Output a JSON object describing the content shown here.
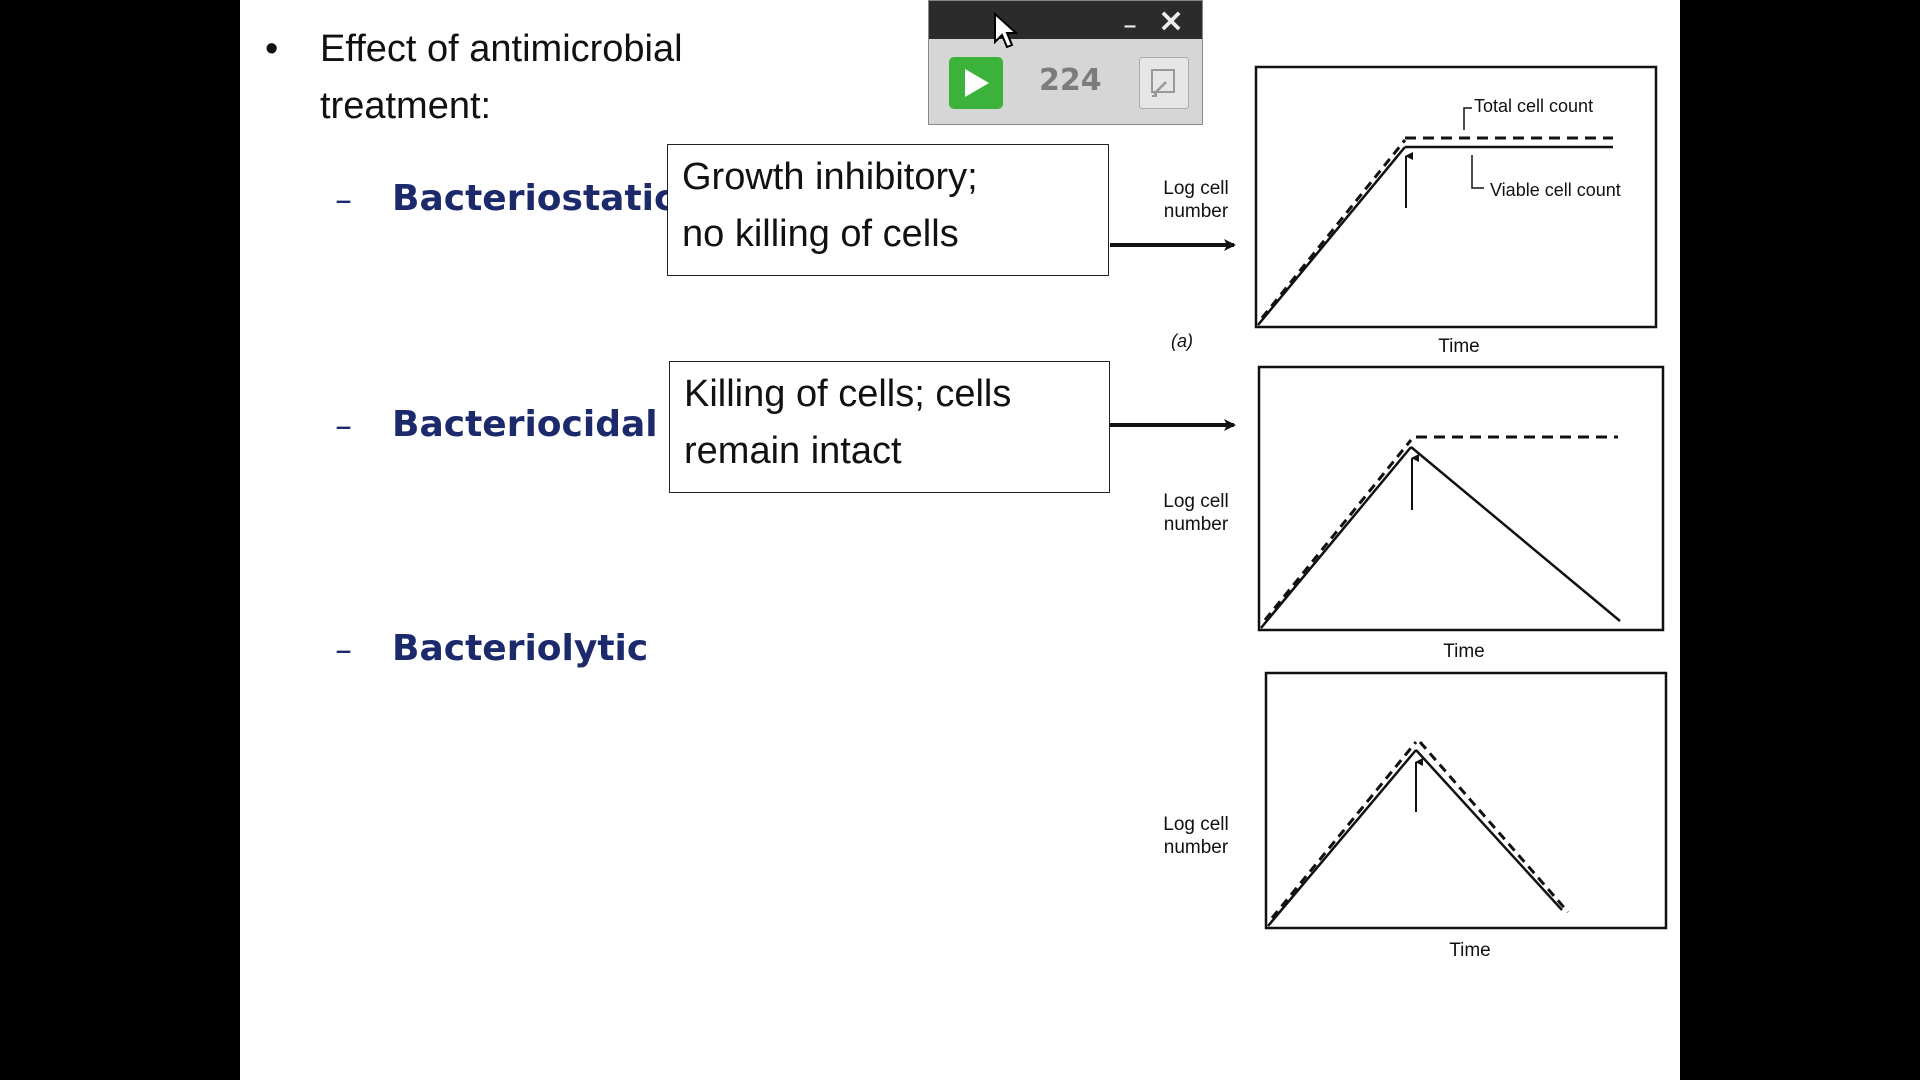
{
  "slide": {
    "heading_line1": "Effect of antimicrobial",
    "heading_line2": "treatment:",
    "bullet_char": "•",
    "dash_char": "–",
    "items": [
      {
        "label": "Bacteriostatic",
        "description_line1": "Growth inhibitory;",
        "description_line2": "no killing of cells"
      },
      {
        "label": "Bacteriocidal",
        "description_line1": "Killing of cells; cells",
        "description_line2": "remain intact"
      },
      {
        "label": "Bacteriolytic"
      }
    ]
  },
  "graphs": {
    "y_label_line1": "Log cell",
    "y_label_line2": "number",
    "x_label": "Time",
    "panel_a_tag": "(a)",
    "total_cell_count": "Total cell count",
    "viable_cell_count": "Viable cell count"
  },
  "player": {
    "minimize_label": "_",
    "close_label": "×",
    "counter": "224",
    "play_icon": "play-icon",
    "expand_icon": "expand-icon"
  },
  "colors": {
    "background": "#000000",
    "slide": "#ffffff",
    "accent_text": "#1c2a6b",
    "play_green": "#3bb33b"
  }
}
